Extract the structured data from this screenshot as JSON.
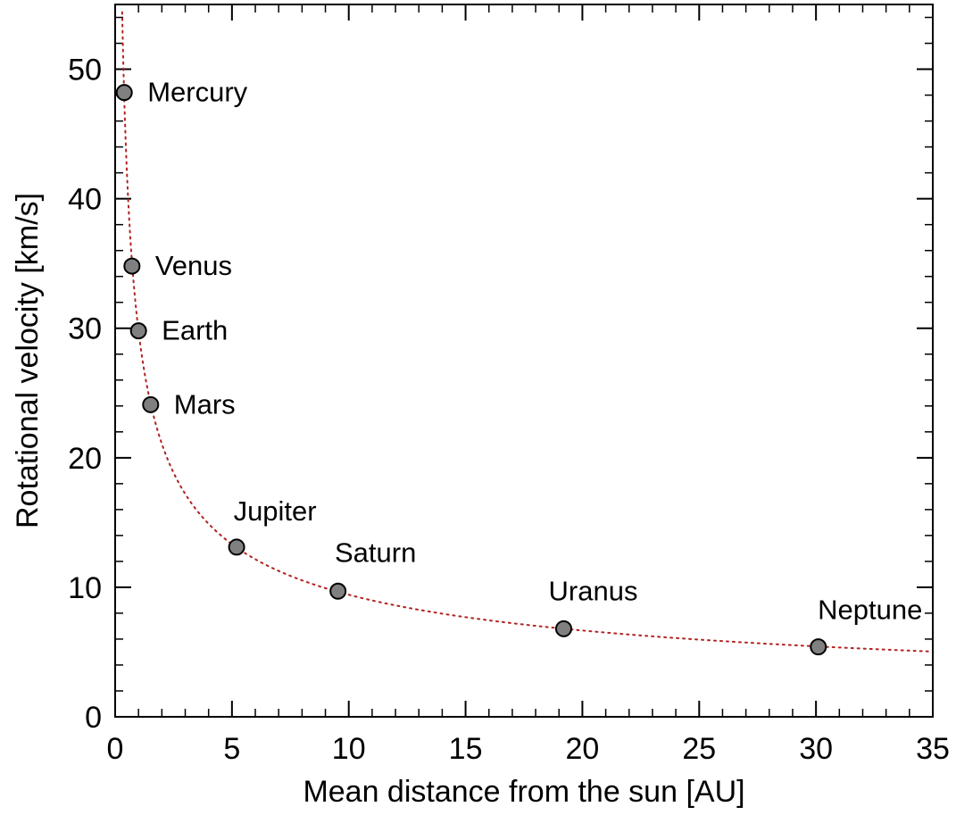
{
  "chart_data": {
    "type": "scatter",
    "title": "",
    "xlabel": "Mean distance from the sun [AU]",
    "ylabel": "Rotational velocity [km/s]",
    "xlim": [
      0,
      35
    ],
    "ylim": [
      0,
      55
    ],
    "xticks": [
      0,
      5,
      10,
      15,
      20,
      25,
      30,
      35
    ],
    "yticks": [
      0,
      10,
      20,
      30,
      40,
      50
    ],
    "grid": false,
    "points": [
      {
        "label": "Mercury",
        "x": 0.39,
        "y": 48.2
      },
      {
        "label": "Venus",
        "x": 0.72,
        "y": 34.8
      },
      {
        "label": "Earth",
        "x": 1.0,
        "y": 29.8
      },
      {
        "label": "Mars",
        "x": 1.52,
        "y": 24.1
      },
      {
        "label": "Jupiter",
        "x": 5.2,
        "y": 13.1
      },
      {
        "label": "Saturn",
        "x": 9.54,
        "y": 9.7
      },
      {
        "label": "Uranus",
        "x": 19.2,
        "y": 6.8
      },
      {
        "label": "Neptune",
        "x": 30.1,
        "y": 5.4
      }
    ],
    "fit_curve": {
      "formula": "y = 29.8 / sqrt(x)",
      "style": "dotted",
      "color": "#b22222"
    },
    "marker_color": "#808080"
  }
}
